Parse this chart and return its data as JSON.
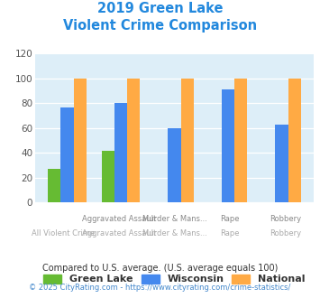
{
  "title_line1": "2019 Green Lake",
  "title_line2": "Violent Crime Comparison",
  "categories_top": [
    "Aggravated Assault",
    "Murder & Mans...",
    "Rape",
    "Robbery"
  ],
  "categories_bottom": [
    "All Violent Crime",
    "Aggravated Assault",
    "Murder & Mans...",
    "Rape",
    "Robbery"
  ],
  "green_lake": [
    27,
    42,
    0,
    0,
    0
  ],
  "wisconsin": [
    77,
    80,
    60,
    91,
    63
  ],
  "national": [
    100,
    100,
    100,
    100,
    100
  ],
  "bar_color_green": "#66bb33",
  "bar_color_blue": "#4488ee",
  "bar_color_orange": "#ffaa44",
  "ylim": [
    0,
    120
  ],
  "yticks": [
    0,
    20,
    40,
    60,
    80,
    100,
    120
  ],
  "legend_labels": [
    "Green Lake",
    "Wisconsin",
    "National"
  ],
  "footnote1": "Compared to U.S. average. (U.S. average equals 100)",
  "footnote2": "© 2025 CityRating.com - https://www.cityrating.com/crime-statistics/",
  "title_color": "#2288dd",
  "footnote1_color": "#333333",
  "footnote2_color": "#4488cc",
  "plot_bg_color": "#ddeef8"
}
